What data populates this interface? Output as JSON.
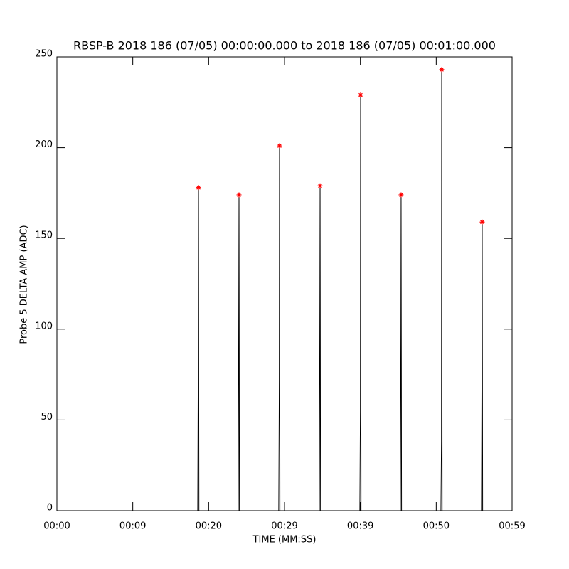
{
  "chart_data": {
    "type": "line",
    "title": "RBSP-B 2018 186 (07/05) 00:00:00.000 to 2018 186 (07/05) 00:01:00.000",
    "x_label": "TIME (MM:SS)",
    "y_label": "Probe 5 DELTA AMP (ADC)",
    "xlim": [
      0,
      60
    ],
    "ylim": [
      0,
      250
    ],
    "xticks": [
      {
        "value": 0,
        "label": "00:00"
      },
      {
        "value": 10,
        "label": "00:09"
      },
      {
        "value": 20,
        "label": "00:20"
      },
      {
        "value": 30,
        "label": "00:29"
      },
      {
        "value": 40,
        "label": "00:39"
      },
      {
        "value": 50,
        "label": "00:50"
      },
      {
        "value": 60,
        "label": "00:59"
      }
    ],
    "yticks": [
      0,
      50,
      100,
      150,
      200,
      250
    ],
    "series": [
      {
        "type": "line",
        "color": "#000000",
        "x": [
          0,
          18.56,
          18.63,
          18.66,
          18.72,
          23.9,
          23.97,
          24.0,
          24.06,
          29.24,
          29.31,
          29.34,
          29.4,
          34.59,
          34.66,
          34.69,
          34.75,
          39.93,
          40.0,
          40.03,
          40.09,
          45.27,
          45.34,
          45.37,
          45.43,
          50.62,
          50.69,
          50.72,
          50.78,
          55.96,
          56.03,
          56.06,
          56.12,
          58.5
        ],
        "values": [
          0,
          0,
          89,
          178,
          0,
          0,
          117,
          174,
          0,
          0,
          72,
          201,
          0,
          0,
          115,
          179,
          0,
          0,
          55,
          229,
          0,
          0,
          99,
          174,
          0,
          0,
          38,
          243,
          0,
          0,
          84,
          159,
          0,
          0
        ]
      },
      {
        "type": "scatter",
        "color": "#ff0000",
        "x": [
          18.66,
          24.0,
          29.34,
          34.69,
          40.03,
          45.37,
          50.72,
          56.06
        ],
        "values": [
          178,
          174,
          201,
          179,
          229,
          174,
          243,
          159
        ]
      }
    ]
  }
}
